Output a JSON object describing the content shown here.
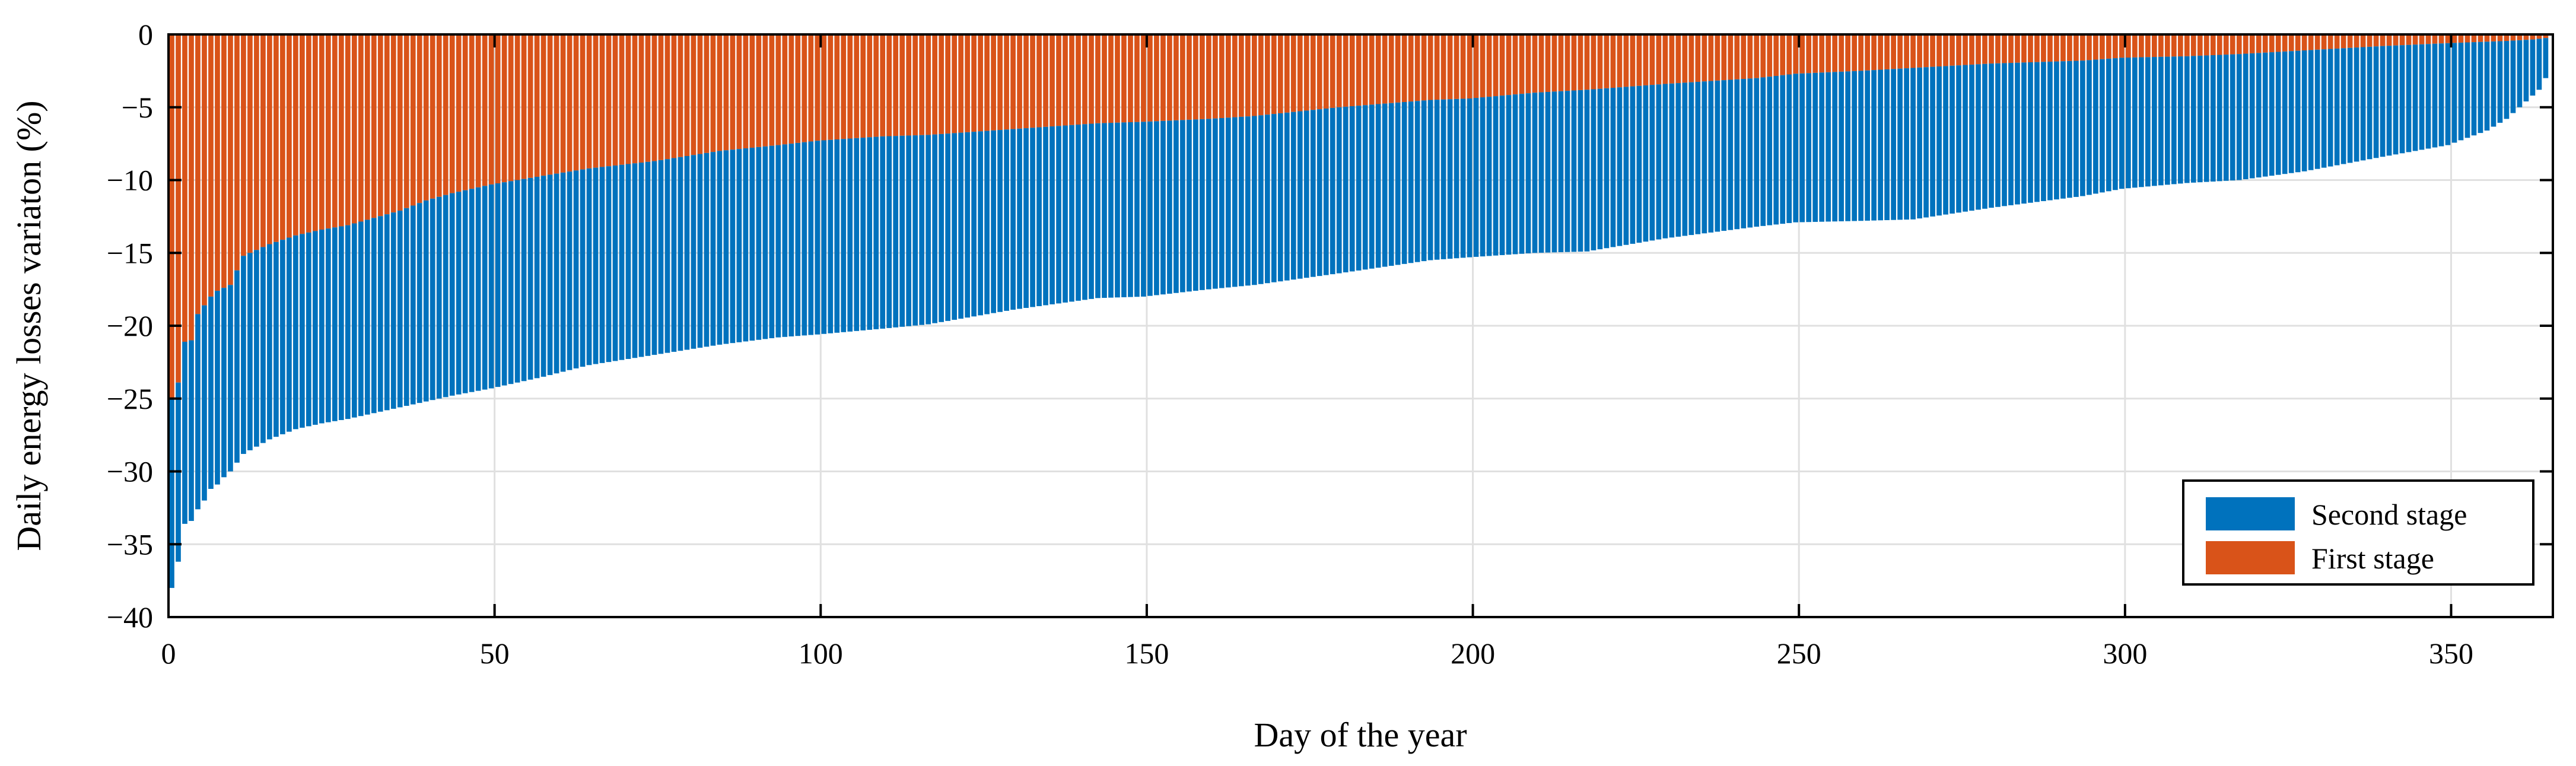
{
  "figure": {
    "background": "#ffffff",
    "frame_color": "#000000",
    "grid_color": "#e0e0e0"
  },
  "legend": {
    "position": "lower-right",
    "entries": [
      {
        "label": "Second stage",
        "color": "#0072BD"
      },
      {
        "label": "First stage",
        "color": "#D95319"
      }
    ]
  },
  "chart_data": {
    "type": "bar",
    "stacked": true,
    "orientation": "vertical",
    "title": "",
    "xlabel": "Day of the year",
    "ylabel": "Daily energy losses variaton (%)",
    "xlim": [
      0,
      366
    ],
    "ylim": [
      -40,
      0
    ],
    "x_ticks": [
      0,
      50,
      100,
      150,
      200,
      250,
      300,
      350
    ],
    "y_ticks": [
      0,
      -5,
      -10,
      -15,
      -20,
      -25,
      -30,
      -35,
      -40
    ],
    "grid": true,
    "tick_direction": "in",
    "box": true,
    "n_bars": 365,
    "note": "365 daily bars sorted from most negative total variation to least; orange (First stage) stacks from 0 downward, blue (Second stage) stacks below it. Values between anchor days are linear.",
    "series": [
      {
        "name": "First stage",
        "color": "#D95319",
        "stack_order": 1
      },
      {
        "name": "Second stage",
        "color": "#0072BD",
        "stack_order": 2
      }
    ],
    "anchors": {
      "day": [
        1,
        2,
        3,
        4,
        5,
        6,
        7,
        8,
        9,
        10,
        12,
        16,
        20,
        24,
        28,
        32,
        36,
        40,
        44,
        50,
        58,
        65,
        75,
        85,
        94,
        100,
        110,
        117,
        130,
        143,
        150,
        160,
        167,
        180,
        194,
        200,
        210,
        218,
        230,
        244,
        250,
        260,
        268,
        280,
        294,
        300,
        310,
        318,
        328,
        340,
        350,
        356,
        359,
        361,
        363,
        364,
        365
      ],
      "first_stage": [
        -25.0,
        -23.9,
        -21.1,
        -21.0,
        -19.2,
        -18.6,
        -18.0,
        -17.6,
        -17.4,
        -17.2,
        -15.2,
        -14.4,
        -13.8,
        -13.4,
        -13.1,
        -12.6,
        -12.1,
        -11.4,
        -10.9,
        -10.3,
        -9.7,
        -9.2,
        -8.7,
        -8.0,
        -7.6,
        -7.3,
        -7.0,
        -6.9,
        -6.5,
        -6.1,
        -6.0,
        -5.8,
        -5.6,
        -5.0,
        -4.5,
        -4.4,
        -4.0,
        -3.8,
        -3.4,
        -3.0,
        -2.7,
        -2.5,
        -2.3,
        -2.0,
        -1.8,
        -1.6,
        -1.5,
        -1.35,
        -1.1,
        -0.8,
        -0.6,
        -0.5,
        -0.45,
        -0.4,
        -0.35,
        -0.3,
        -0.25
      ],
      "second_stage": [
        -13.0,
        -12.3,
        -12.5,
        -12.4,
        -13.4,
        -13.4,
        -13.2,
        -13.3,
        -13.0,
        -12.8,
        -13.6,
        -13.4,
        -13.3,
        -13.3,
        -13.3,
        -13.4,
        -13.5,
        -13.8,
        -13.9,
        -14.0,
        -13.8,
        -13.5,
        -13.3,
        -13.3,
        -13.2,
        -13.3,
        -13.2,
        -13.0,
        -12.4,
        -12.0,
        -12.0,
        -11.7,
        -11.6,
        -11.4,
        -11.0,
        -10.9,
        -11.0,
        -11.1,
        -10.6,
        -10.2,
        -10.2,
        -10.3,
        -10.4,
        -9.9,
        -9.3,
        -9.0,
        -8.7,
        -8.65,
        -8.3,
        -7.6,
        -7.0,
        -6.1,
        -5.35,
        -4.6,
        -3.85,
        -3.5,
        -2.75
      ]
    }
  }
}
